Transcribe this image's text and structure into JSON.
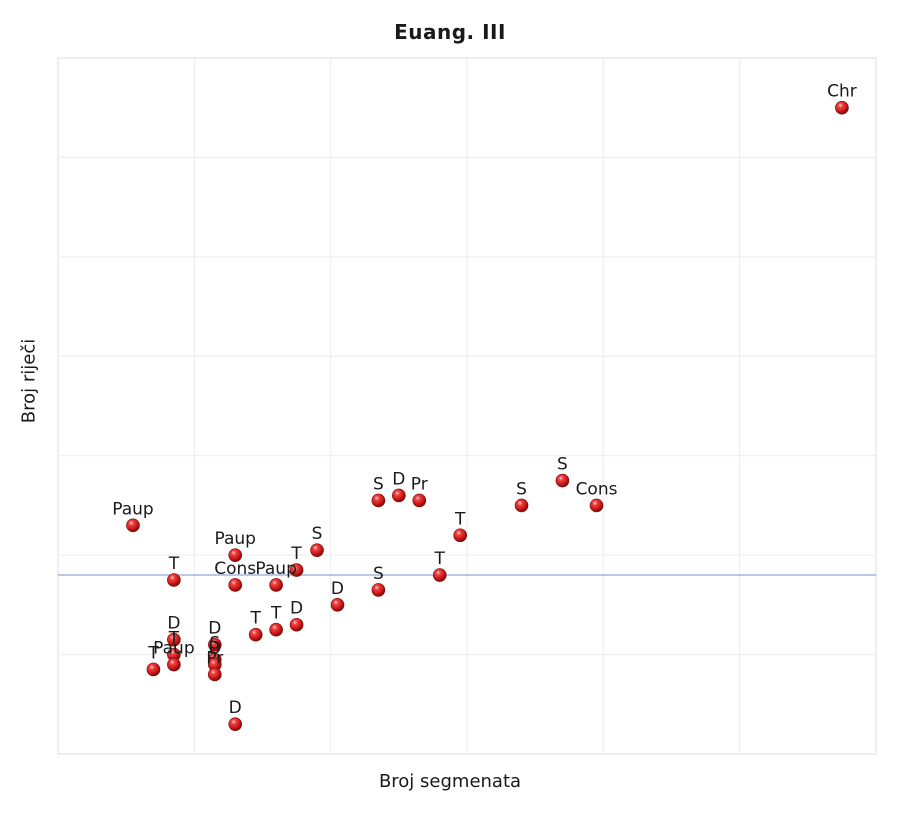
{
  "chart_data": {
    "type": "scatter",
    "title": "Euang. III",
    "xlabel": "Broj segmenata",
    "ylabel": "Broj riječi",
    "xlim": [
      0,
      12
    ],
    "ylim": [
      0,
      14
    ],
    "grid": true,
    "reference_line": {
      "y": 3.6,
      "color": "#7b8fd6"
    },
    "marker_color": "#d42020",
    "points": [
      {
        "x": 11.5,
        "y": 13.0,
        "label": "Chr"
      },
      {
        "x": 1.1,
        "y": 4.6,
        "label": "Paup"
      },
      {
        "x": 1.7,
        "y": 3.5,
        "label": "T"
      },
      {
        "x": 2.6,
        "y": 4.0,
        "label": "Paup"
      },
      {
        "x": 2.6,
        "y": 3.4,
        "label": "Cons"
      },
      {
        "x": 3.2,
        "y": 3.4,
        "label": "Paup"
      },
      {
        "x": 3.5,
        "y": 3.7,
        "label": "T"
      },
      {
        "x": 3.8,
        "y": 4.1,
        "label": "S"
      },
      {
        "x": 4.7,
        "y": 5.1,
        "label": "S"
      },
      {
        "x": 5.0,
        "y": 5.2,
        "label": "D"
      },
      {
        "x": 5.3,
        "y": 5.1,
        "label": "Pr"
      },
      {
        "x": 5.9,
        "y": 4.4,
        "label": "T"
      },
      {
        "x": 5.6,
        "y": 3.6,
        "label": "T"
      },
      {
        "x": 4.7,
        "y": 3.3,
        "label": "S"
      },
      {
        "x": 4.1,
        "y": 3.0,
        "label": "D"
      },
      {
        "x": 3.5,
        "y": 2.6,
        "label": "D"
      },
      {
        "x": 3.2,
        "y": 2.5,
        "label": "T"
      },
      {
        "x": 2.9,
        "y": 2.4,
        "label": "T"
      },
      {
        "x": 1.7,
        "y": 2.3,
        "label": "D"
      },
      {
        "x": 2.3,
        "y": 2.2,
        "label": "D"
      },
      {
        "x": 1.7,
        "y": 2.0,
        "label": "T"
      },
      {
        "x": 2.3,
        "y": 1.9,
        "label": "S"
      },
      {
        "x": 2.3,
        "y": 1.8,
        "label": "D"
      },
      {
        "x": 1.7,
        "y": 1.8,
        "label": "Paup"
      },
      {
        "x": 1.4,
        "y": 1.7,
        "label": "T"
      },
      {
        "x": 2.3,
        "y": 1.6,
        "label": "Pr"
      },
      {
        "x": 2.6,
        "y": 0.6,
        "label": "D"
      },
      {
        "x": 6.8,
        "y": 5.0,
        "label": "S"
      },
      {
        "x": 7.4,
        "y": 5.5,
        "label": "S"
      },
      {
        "x": 7.9,
        "y": 5.0,
        "label": "Cons"
      }
    ]
  }
}
